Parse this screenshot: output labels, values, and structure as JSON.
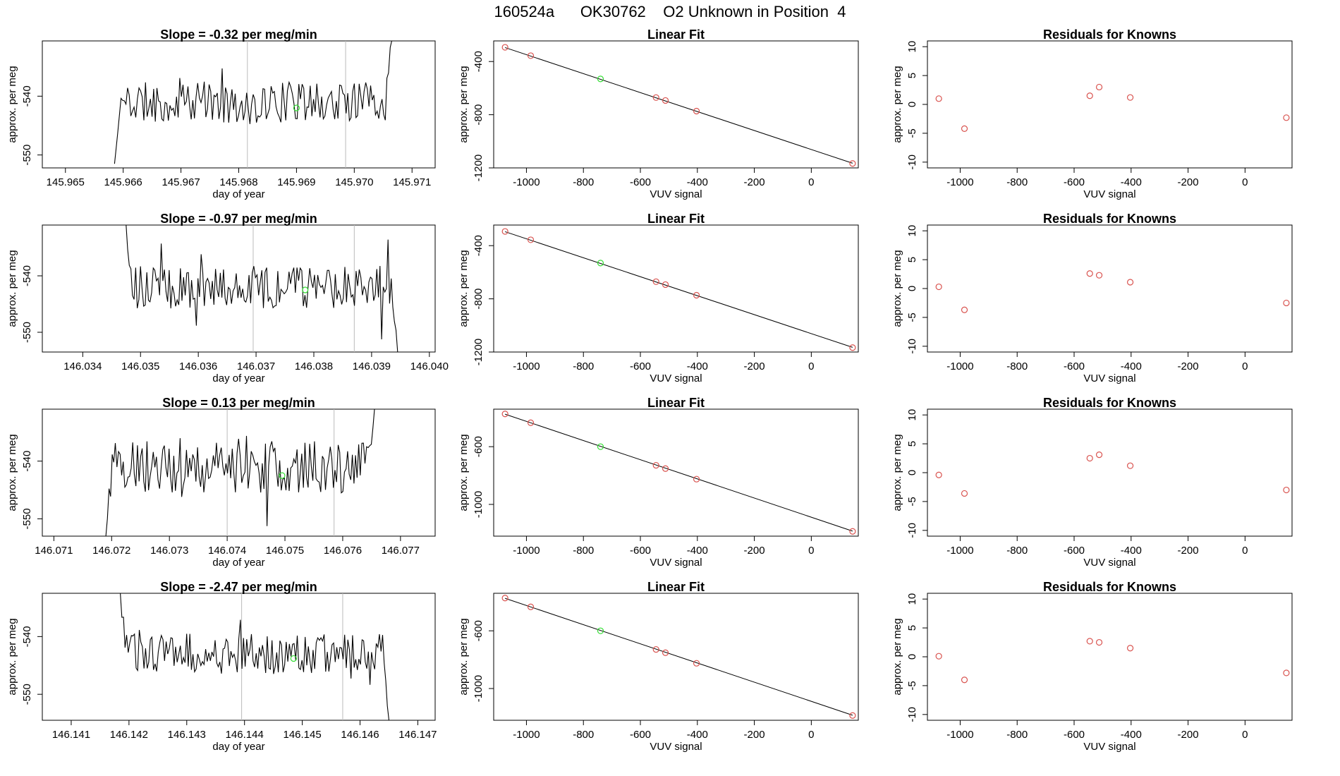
{
  "suptitle": "160524a      OK30762    O2 Unknown in Position  4",
  "colors": {
    "line": "#000000",
    "frame": "#000000",
    "marker": "#d9534f",
    "unknown": "#33dd33",
    "vline": "#bbbbbb"
  },
  "rows": [
    {
      "time": {
        "title": "Slope =  -0.32  per meg/min",
        "xlabel": "day of year",
        "ylabel": "approx. per meg",
        "xlim": [
          145.9646,
          145.9714
        ],
        "ylim": [
          -552.2,
          -530.6
        ],
        "xticks": [
          "145.965",
          "145.966",
          "145.967",
          "145.968",
          "145.969",
          "145.970",
          "145.971"
        ],
        "yticks": [
          "-540",
          "-550"
        ],
        "vlines": [
          145.96815,
          145.96985
        ],
        "start": 145.96585,
        "end": 145.97065,
        "first": -551.5,
        "last": -530.5,
        "center": -541,
        "amp": 3.5,
        "seed": 11,
        "unknown": {
          "x": 145.969,
          "y": -542.0
        }
      },
      "fit": {
        "title": "Linear Fit",
        "xlabel": "VUV signal",
        "ylabel": "approx. per meg",
        "xlim": [
          -1115,
          165
        ],
        "ylim": [
          -1200,
          -245
        ],
        "xticks": [
          "-1000",
          "-800",
          "-600",
          "-400",
          "-200",
          "0"
        ],
        "yticks": [
          "-400",
          "-800",
          "-1200"
        ],
        "line": [
          [
            -1075,
            -295
          ],
          [
            145,
            -1165
          ]
        ],
        "knowns": [
          [
            -1075,
            -293
          ],
          [
            -985,
            -356
          ],
          [
            -545,
            -671
          ],
          [
            -512,
            -693
          ],
          [
            -403,
            -773
          ],
          [
            145,
            -1167
          ]
        ],
        "unknown": [
          -740,
          -531
        ]
      },
      "resid": {
        "title": "Residuals for Knowns",
        "xlabel": "VUV signal",
        "ylabel": "approx. per meg",
        "xlim": [
          -1115,
          165
        ],
        "ylim": [
          -11,
          11
        ],
        "xticks": [
          "-1000",
          "-800",
          "-600",
          "-400",
          "-200",
          "0"
        ],
        "yticks": [
          "10",
          "5",
          "0",
          "-5",
          "-10"
        ],
        "points": [
          [
            -1075,
            1.0
          ],
          [
            -985,
            -4.2
          ],
          [
            -545,
            1.5
          ],
          [
            -512,
            3.0
          ],
          [
            -403,
            1.2
          ],
          [
            145,
            -2.3
          ]
        ]
      }
    },
    {
      "time": {
        "title": "Slope =  -0.97  per meg/min",
        "xlabel": "day of year",
        "ylabel": "approx. per meg",
        "xlim": [
          146.0333,
          146.0401
        ],
        "ylim": [
          -553.5,
          -531.0
        ],
        "xticks": [
          "146.034",
          "146.035",
          "146.036",
          "146.037",
          "146.038",
          "146.039",
          "146.040"
        ],
        "yticks": [
          "-540",
          "-550"
        ],
        "vlines": [
          146.03695,
          146.0387
        ],
        "start": 146.03475,
        "end": 146.03945,
        "first": -531.0,
        "last": -553.5,
        "center": -542,
        "amp": 3.8,
        "seed": 23,
        "unknown": {
          "x": 146.03785,
          "y": -542.5
        }
      },
      "fit": {
        "title": "Linear Fit",
        "xlabel": "VUV signal",
        "ylabel": "approx. per meg",
        "xlim": [
          -1115,
          165
        ],
        "ylim": [
          -1200,
          -245
        ],
        "xticks": [
          "-1000",
          "-800",
          "-600",
          "-400",
          "-200",
          "0"
        ],
        "yticks": [
          "-400",
          "-800",
          "-1200"
        ],
        "line": [
          [
            -1075,
            -295
          ],
          [
            145,
            -1165
          ]
        ],
        "knowns": [
          [
            -1075,
            -293
          ],
          [
            -985,
            -356
          ],
          [
            -545,
            -671
          ],
          [
            -512,
            -693
          ],
          [
            -403,
            -773
          ],
          [
            145,
            -1167
          ]
        ],
        "unknown": [
          -740,
          -531
        ]
      },
      "resid": {
        "title": "Residuals for Knowns",
        "xlabel": "VUV signal",
        "ylabel": "approx. per meg",
        "xlim": [
          -1115,
          165
        ],
        "ylim": [
          -11,
          11
        ],
        "xticks": [
          "-1000",
          "-800",
          "-600",
          "-400",
          "-200",
          "0"
        ],
        "yticks": [
          "10",
          "5",
          "0",
          "-5",
          "-10"
        ],
        "points": [
          [
            -1075,
            0.3
          ],
          [
            -985,
            -3.7
          ],
          [
            -545,
            2.6
          ],
          [
            -512,
            2.3
          ],
          [
            -403,
            1.1
          ],
          [
            145,
            -2.5
          ]
        ]
      }
    },
    {
      "time": {
        "title": "Slope =  0.13  per meg/min",
        "xlabel": "day of year",
        "ylabel": "approx. per meg",
        "xlim": [
          146.0708,
          146.0776
        ],
        "ylim": [
          -553.0,
          -531.0
        ],
        "xticks": [
          "146.071",
          "146.072",
          "146.073",
          "146.074",
          "146.075",
          "146.076",
          "146.077"
        ],
        "yticks": [
          "-540",
          "-550"
        ],
        "vlines": [
          146.074,
          146.07585
        ],
        "start": 146.0719,
        "end": 146.07655,
        "first": -553.0,
        "last": -531.0,
        "center": -541,
        "amp": 4.5,
        "seed": 37,
        "unknown": {
          "x": 146.07495,
          "y": -542.5
        }
      },
      "fit": {
        "title": "Linear Fit",
        "xlabel": "VUV signal",
        "ylabel": "approx. per meg",
        "xlim": [
          -1115,
          165
        ],
        "ylim": [
          -1220,
          -340
        ],
        "xticks": [
          "-1000",
          "-800",
          "-600",
          "-400",
          "-200",
          "0"
        ],
        "yticks": [
          "-600",
          "-1000"
        ],
        "line": [
          [
            -1075,
            -375
          ],
          [
            145,
            -1185
          ]
        ],
        "knowns": [
          [
            -1075,
            -373
          ],
          [
            -985,
            -434
          ],
          [
            -545,
            -729
          ],
          [
            -512,
            -752
          ],
          [
            -403,
            -825
          ],
          [
            145,
            -1187
          ]
        ],
        "unknown": [
          -740,
          -600
        ]
      },
      "resid": {
        "title": "Residuals for Knowns",
        "xlabel": "VUV signal",
        "ylabel": "approx. per meg",
        "xlim": [
          -1115,
          165
        ],
        "ylim": [
          -11,
          11
        ],
        "xticks": [
          "-1000",
          "-800",
          "-600",
          "-400",
          "-200",
          "0"
        ],
        "yticks": [
          "10",
          "5",
          "0",
          "-5",
          "-10"
        ],
        "points": [
          [
            -1075,
            -0.4
          ],
          [
            -985,
            -3.6
          ],
          [
            -545,
            2.5
          ],
          [
            -512,
            3.1
          ],
          [
            -403,
            1.2
          ],
          [
            145,
            -3.0
          ]
        ]
      }
    },
    {
      "time": {
        "title": "Slope =  -2.47  per meg/min",
        "xlabel": "day of year",
        "ylabel": "approx. per meg",
        "xlim": [
          146.1405,
          146.1473
        ],
        "ylim": [
          -554.5,
          -532.5
        ],
        "xticks": [
          "146.141",
          "146.142",
          "146.143",
          "146.144",
          "146.145",
          "146.146",
          "146.147"
        ],
        "yticks": [
          "-540",
          "-550"
        ],
        "vlines": [
          146.14395,
          146.1457
        ],
        "start": 146.14185,
        "end": 146.1465,
        "first": -532.5,
        "last": -554.5,
        "center": -543,
        "amp": 3.5,
        "seed": 53,
        "unknown": {
          "x": 146.14485,
          "y": -543.8
        }
      },
      "fit": {
        "title": "Linear Fit",
        "xlabel": "VUV signal",
        "ylabel": "approx. per meg",
        "xlim": [
          -1115,
          165
        ],
        "ylim": [
          -1220,
          -340
        ],
        "xticks": [
          "-1000",
          "-800",
          "-600",
          "-400",
          "-200",
          "0"
        ],
        "yticks": [
          "-600",
          "-1000"
        ],
        "line": [
          [
            -1075,
            -375
          ],
          [
            145,
            -1185
          ]
        ],
        "knowns": [
          [
            -1075,
            -373
          ],
          [
            -985,
            -434
          ],
          [
            -545,
            -729
          ],
          [
            -512,
            -752
          ],
          [
            -403,
            -825
          ],
          [
            145,
            -1187
          ]
        ],
        "unknown": [
          -740,
          -600
        ]
      },
      "resid": {
        "title": "Residuals for Knowns",
        "xlabel": "VUV signal",
        "ylabel": "approx. per meg",
        "xlim": [
          -1115,
          165
        ],
        "ylim": [
          -11,
          11
        ],
        "xticks": [
          "-1000",
          "-800",
          "-600",
          "-400",
          "-200",
          "0"
        ],
        "yticks": [
          "10",
          "5",
          "0",
          "-5",
          "-10"
        ],
        "points": [
          [
            -1075,
            0.1
          ],
          [
            -985,
            -4.0
          ],
          [
            -545,
            2.7
          ],
          [
            -512,
            2.5
          ],
          [
            -403,
            1.5
          ],
          [
            145,
            -2.8
          ]
        ]
      }
    }
  ],
  "chart_data": [
    {
      "type": "line",
      "title": "Slope =  -0.32  per meg/min",
      "xlabel": "day of year",
      "ylabel": "approx. per meg",
      "xlim": [
        145.9646,
        145.9714
      ],
      "ylim": [
        -552.2,
        -530.6
      ]
    },
    {
      "type": "scatter",
      "title": "Linear Fit",
      "xlabel": "VUV signal",
      "ylabel": "approx. per meg",
      "x": [
        -1075,
        -985,
        -545,
        -512,
        -403,
        145
      ],
      "y": [
        -293,
        -356,
        -671,
        -693,
        -773,
        -1167
      ]
    },
    {
      "type": "scatter",
      "title": "Residuals for Knowns",
      "xlabel": "VUV signal",
      "ylabel": "approx. per meg",
      "x": [
        -1075,
        -985,
        -545,
        -512,
        -403,
        145
      ],
      "y": [
        1.0,
        -4.2,
        1.5,
        3.0,
        1.2,
        -2.3
      ]
    },
    {
      "type": "line",
      "title": "Slope =  -0.97  per meg/min",
      "xlabel": "day of year",
      "ylabel": "approx. per meg",
      "xlim": [
        146.0333,
        146.0401
      ],
      "ylim": [
        -553.5,
        -531.0
      ]
    },
    {
      "type": "scatter",
      "title": "Linear Fit",
      "xlabel": "VUV signal",
      "ylabel": "approx. per meg",
      "x": [
        -1075,
        -985,
        -545,
        -512,
        -403,
        145
      ],
      "y": [
        -293,
        -356,
        -671,
        -693,
        -773,
        -1167
      ]
    },
    {
      "type": "scatter",
      "title": "Residuals for Knowns",
      "xlabel": "VUV signal",
      "ylabel": "approx. per meg",
      "x": [
        -1075,
        -985,
        -545,
        -512,
        -403,
        145
      ],
      "y": [
        0.3,
        -3.7,
        2.6,
        2.3,
        1.1,
        -2.5
      ]
    },
    {
      "type": "line",
      "title": "Slope =  0.13  per meg/min",
      "xlabel": "day of year",
      "ylabel": "approx. per meg",
      "xlim": [
        146.0708,
        146.0776
      ],
      "ylim": [
        -553.0,
        -531.0
      ]
    },
    {
      "type": "scatter",
      "title": "Linear Fit",
      "xlabel": "VUV signal",
      "ylabel": "approx. per meg",
      "x": [
        -1075,
        -985,
        -545,
        -512,
        -403,
        145
      ],
      "y": [
        -373,
        -434,
        -729,
        -752,
        -825,
        -1187
      ]
    },
    {
      "type": "scatter",
      "title": "Residuals for Knowns",
      "xlabel": "VUV signal",
      "ylabel": "approx. per meg",
      "x": [
        -1075,
        -985,
        -545,
        -512,
        -403,
        145
      ],
      "y": [
        -0.4,
        -3.6,
        2.5,
        3.1,
        1.2,
        -3.0
      ]
    },
    {
      "type": "line",
      "title": "Slope =  -2.47  per meg/min",
      "xlabel": "day of year",
      "ylabel": "approx. per meg",
      "xlim": [
        146.1405,
        146.1473
      ],
      "ylim": [
        -554.5,
        -532.5
      ]
    },
    {
      "type": "scatter",
      "title": "Linear Fit",
      "xlabel": "VUV signal",
      "ylabel": "approx. per meg",
      "x": [
        -1075,
        -985,
        -545,
        -512,
        -403,
        145
      ],
      "y": [
        -373,
        -434,
        -729,
        -752,
        -825,
        -1187
      ]
    },
    {
      "type": "scatter",
      "title": "Residuals for Knowns",
      "xlabel": "VUV signal",
      "ylabel": "approx. per meg",
      "x": [
        -1075,
        -985,
        -545,
        -512,
        -403,
        145
      ],
      "y": [
        0.1,
        -4.0,
        2.7,
        2.5,
        1.5,
        -2.8
      ]
    }
  ]
}
